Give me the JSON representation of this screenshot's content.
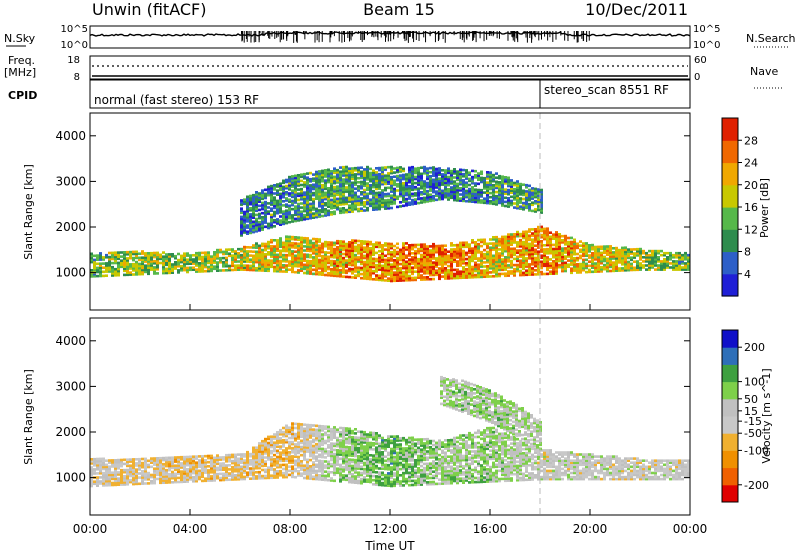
{
  "header": {
    "station": "Unwin (fitACF)",
    "beam": "Beam 15",
    "date": "10/Dec/2011"
  },
  "summary_panels": {
    "nsky_label": "N.Sky",
    "nsearch_label": "N.Search",
    "nsky_ticks": [
      "10^5",
      "10^0"
    ],
    "nsearch_ticks": [
      "10^5",
      "10^0"
    ],
    "freq_label": "Freq.",
    "freq_unit": "[MHz]",
    "freq_ticks": [
      "18",
      "8"
    ],
    "nave_label": "Nave",
    "nave_ticks": [
      "60",
      "0"
    ],
    "cpid_label": "CPID",
    "cpid_segments": [
      {
        "label": "normal (fast stereo) 153 RF",
        "start_hour": 0,
        "end_hour": 18
      },
      {
        "label": "stereo_scan 8551 RF",
        "start_hour": 18,
        "end_hour": 24
      }
    ]
  },
  "colors": {
    "power_scale": [
      "#1f1fd6",
      "#2d5fc8",
      "#2e8c4e",
      "#56b84a",
      "#c8c800",
      "#f0a800",
      "#f06800",
      "#e02000"
    ],
    "velocity_scale": [
      "#e00000",
      "#f06000",
      "#f09000",
      "#f0b030",
      "#c8c8c8",
      "#c0c0c0",
      "#7ed04a",
      "#3ea040",
      "#2e6fb8",
      "#1010c8"
    ]
  },
  "chart_data": [
    {
      "type": "heatmap",
      "title": "",
      "quantity": "Power",
      "ylabel": "Slant Range [km]",
      "xlabel": "",
      "x_range_hours": [
        0,
        24
      ],
      "xticks": [
        "00:00",
        "04:00",
        "08:00",
        "12:00",
        "16:00",
        "20:00",
        "00:00"
      ],
      "ylim": [
        180,
        4500
      ],
      "yticks": [
        1000,
        2000,
        3000,
        4000
      ],
      "colorbar": {
        "label": "Power [dB]",
        "min": 0,
        "max": 32,
        "ticks": [
          4,
          8,
          12,
          16,
          20,
          24,
          28
        ]
      },
      "backscatter_bands": [
        {
          "x": [
            0,
            2,
            4,
            6,
            8,
            10,
            12,
            14,
            16,
            18,
            20,
            22,
            24
          ],
          "range_low": [
            900,
            950,
            1000,
            1050,
            1000,
            900,
            800,
            850,
            900,
            950,
            1000,
            1050,
            1050
          ],
          "range_high": [
            1400,
            1450,
            1400,
            1550,
            1800,
            1700,
            1650,
            1600,
            1750,
            2000,
            1600,
            1500,
            1400
          ],
          "typical_power_db": [
            14,
            16,
            15,
            18,
            20,
            22,
            24,
            26,
            20,
            24,
            20,
            16,
            14
          ]
        },
        {
          "x": [
            6,
            8,
            10,
            12,
            14,
            16,
            18
          ],
          "range_low": [
            1800,
            2100,
            2300,
            2400,
            2600,
            2500,
            2300
          ],
          "range_high": [
            2600,
            3100,
            3300,
            3300,
            3300,
            3200,
            2800
          ],
          "typical_power_db": [
            8,
            10,
            12,
            10,
            8,
            10,
            12
          ]
        }
      ]
    },
    {
      "type": "heatmap",
      "title": "",
      "quantity": "Velocity",
      "ylabel": "Slant Range [km]",
      "xlabel": "Time UT",
      "x_range_hours": [
        0,
        24
      ],
      "xticks": [
        "00:00",
        "04:00",
        "08:00",
        "12:00",
        "16:00",
        "20:00",
        "00:00"
      ],
      "ylim": [
        180,
        4500
      ],
      "yticks": [
        1000,
        2000,
        3000,
        4000
      ],
      "colorbar": {
        "label": "Velocity [m s^-1]",
        "min": -250,
        "max": 250,
        "ticks": [
          200,
          100,
          50,
          15,
          -15,
          -50,
          -100,
          -200
        ]
      },
      "backscatter_bands": [
        {
          "x": [
            0,
            2,
            4,
            6,
            8,
            10,
            12,
            14,
            16,
            18,
            20,
            22,
            24
          ],
          "range_low": [
            800,
            850,
            900,
            950,
            1000,
            900,
            800,
            850,
            900,
            950,
            950,
            950,
            950
          ],
          "range_high": [
            1400,
            1400,
            1450,
            1500,
            2200,
            2100,
            1900,
            1800,
            2100,
            1600,
            1500,
            1400,
            1400
          ],
          "typical_velocity_ms": [
            -15,
            -30,
            -50,
            -40,
            -60,
            50,
            100,
            50,
            60,
            0,
            0,
            0,
            0
          ]
        },
        {
          "x": [
            14,
            15,
            16,
            17,
            18
          ],
          "range_low": [
            2600,
            2400,
            2200,
            1900,
            1600
          ],
          "range_high": [
            3200,
            3100,
            2900,
            2600,
            2200
          ],
          "typical_velocity_ms": [
            40,
            50,
            60,
            40,
            30
          ]
        }
      ]
    }
  ],
  "time_axis_label": "Time UT"
}
